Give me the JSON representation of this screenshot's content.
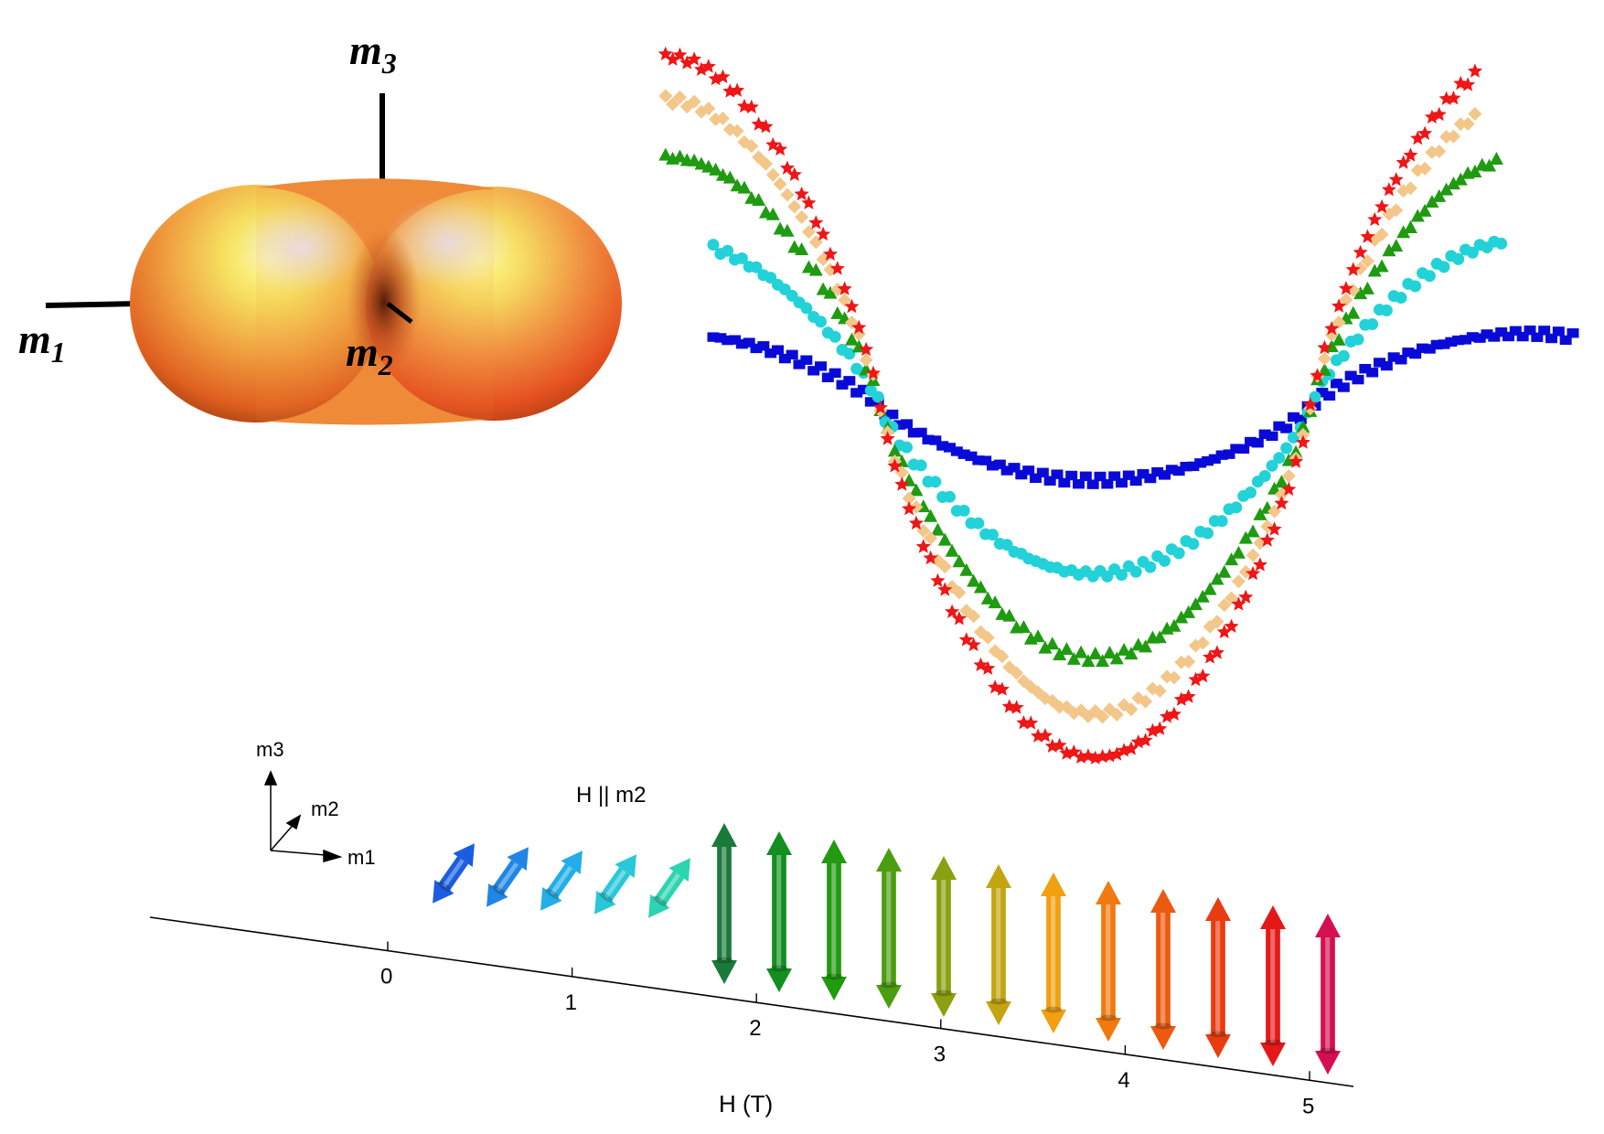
{
  "surface_panel": {
    "axis_labels": [
      {
        "main": "m",
        "sub": "3"
      },
      {
        "main": "m",
        "sub": "1"
      },
      {
        "main": "m",
        "sub": "2"
      }
    ]
  },
  "chart_data": {
    "type": "scatter",
    "title": "",
    "xlabel": "",
    "ylabel": "",
    "grid": false,
    "legend": "none",
    "xlim": [
      0,
      360
    ],
    "ylim": [
      -1.0,
      1.0
    ],
    "series": [
      {
        "color": "#0a0ad8",
        "marker": "square",
        "amplitude": 0.22,
        "offset": 0.0,
        "x_start": 0,
        "x_end": 360
      },
      {
        "color": "#22d2d8",
        "marker": "circle",
        "amplitude": 0.5,
        "offset": 0.0,
        "x_start": 0,
        "x_end": 330
      },
      {
        "color": "#1e9b10",
        "marker": "triangle",
        "amplitude": 0.75,
        "offset": 0.0,
        "x_start": -20,
        "x_end": 330
      },
      {
        "color": "#f3c68a",
        "marker": "diamond",
        "amplitude": 0.92,
        "offset": 0.0,
        "x_start": -20,
        "x_end": 320
      },
      {
        "color": "#ee1616",
        "marker": "star",
        "amplitude": 1.05,
        "offset": 0.0,
        "x_start": -20,
        "x_end": 320
      }
    ]
  },
  "field_panel": {
    "title": "H || m2",
    "xlabel": "H (T)",
    "ticks": [
      "0",
      "1",
      "2",
      "3",
      "4",
      "5"
    ],
    "legend_axes": [
      "m3",
      "m2",
      "m1"
    ],
    "colors": {
      "low_field": [
        "#1a5de0",
        "#1f86e6",
        "#22aee6",
        "#28c8d8",
        "#2cd4b0"
      ],
      "high_field": [
        "#1a7a3a",
        "#128f1f",
        "#229a10",
        "#4a9e10",
        "#8aa010",
        "#c4a410",
        "#f0a010",
        "#f07a10",
        "#ec5a10",
        "#e83c10",
        "#e41818",
        "#d41050"
      ]
    }
  }
}
